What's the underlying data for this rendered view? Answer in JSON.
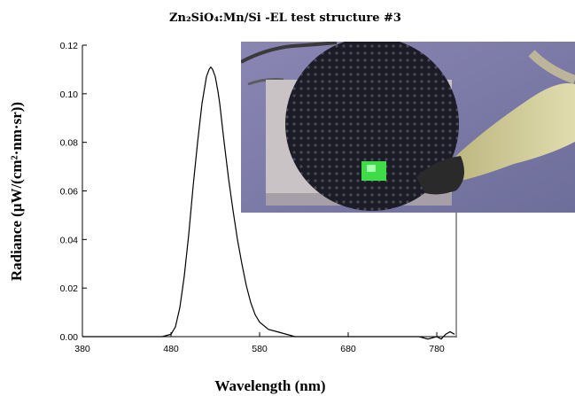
{
  "chart_data": {
    "type": "line",
    "title": "Zn₂SiO₄:Mn/Si  -EL test structure #3",
    "xlabel": "Wavelength (nm)",
    "ylabel": "Radiance (μW/(cm²·nm·sr))",
    "xlim": [
      380,
      800
    ],
    "ylim": [
      0,
      0.12
    ],
    "x_ticks": [
      380,
      480,
      580,
      680,
      780
    ],
    "x_tick_labels": [
      "380",
      "480",
      "580",
      "680",
      "780"
    ],
    "y_ticks": [
      0,
      0.02,
      0.04,
      0.06,
      0.08,
      0.1,
      0.12
    ],
    "y_tick_labels": [
      "0.00",
      "0.02",
      "0.04",
      "0.06",
      "0.08",
      "0.10",
      "0.12"
    ],
    "grid": false,
    "series": [
      {
        "x": [
          380,
          400,
          420,
          440,
          460,
          470,
          480,
          485,
          490,
          495,
          500,
          505,
          510,
          515,
          520,
          523,
          525,
          527,
          530,
          533,
          535,
          540,
          545,
          550,
          555,
          560,
          565,
          570,
          575,
          580,
          590,
          600,
          620,
          640,
          660,
          680,
          700,
          720,
          740,
          760,
          770,
          780,
          785,
          790,
          795,
          800
        ],
        "y": [
          0.0,
          0.0,
          0.0,
          0.0,
          0.0,
          0.0,
          0.001,
          0.004,
          0.012,
          0.025,
          0.042,
          0.062,
          0.08,
          0.096,
          0.107,
          0.11,
          0.111,
          0.11,
          0.107,
          0.101,
          0.096,
          0.08,
          0.065,
          0.052,
          0.04,
          0.03,
          0.021,
          0.014,
          0.009,
          0.006,
          0.003,
          0.002,
          0.0,
          0.0,
          0.0,
          0.0,
          0.0,
          0.0,
          0.0,
          0.0,
          -0.001,
          0.0,
          -0.001,
          0.001,
          0.002,
          0.001
        ]
      }
    ]
  },
  "inset_photo": {
    "description": "Photograph of electroluminescent test structure with green emission",
    "colors": {
      "background": "#7a7aa8",
      "plate": "#c9c3c6",
      "disk": "#1c1c26",
      "glow": "#3fdc4a",
      "probe": "#c9c58a"
    }
  }
}
